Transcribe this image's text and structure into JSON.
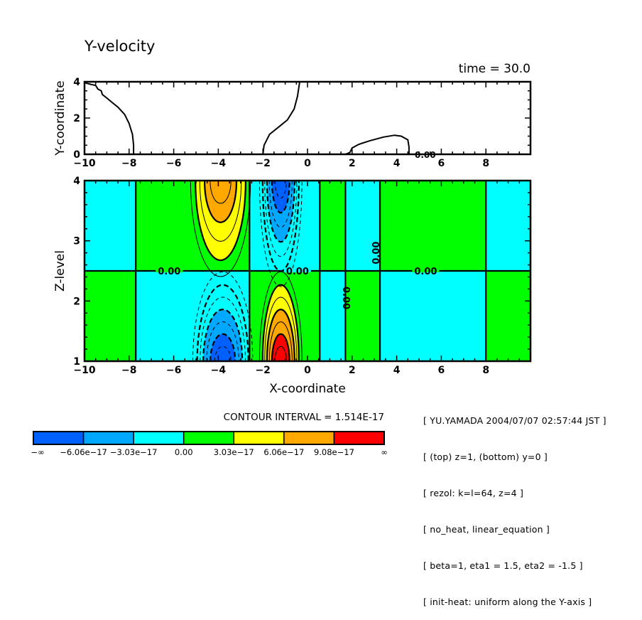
{
  "title": "Y-velocity",
  "time_label": "time = 30.0",
  "contour_interval_label": "CONTOUR INTERVAL = 1.514E-17",
  "info_lines": [
    "[ YU.YAMADA 2004/07/07 02:57:44 JST ]",
    "[ (top) z=1, (bottom) y=0 ]",
    "[ rezol: k=l=64, z=4 ]",
    "[ no_heat, linear_equation ]",
    "[ beta=1, eta1 = 1.5, eta2 = -1.5 ]",
    "[ init-heat: uniform along the Y-axis ]"
  ],
  "chart_data": [
    {
      "type": "contour",
      "panel": "top",
      "title": "Y-velocity",
      "xlabel": "",
      "ylabel": "Y-coordinate",
      "xlim": [
        -10,
        10
      ],
      "ylim": [
        0,
        4
      ],
      "xticks": [
        -10,
        -8,
        -6,
        -4,
        -2,
        0,
        2,
        4,
        6,
        8
      ],
      "yticks": [
        0,
        2,
        4
      ],
      "contour_label": "0.00",
      "zero_contours": [
        {
          "name": "zero-contour-west",
          "points": [
            [
              -10,
              3.95
            ],
            [
              -9.7,
              3.85
            ],
            [
              -9.5,
              3.8
            ],
            [
              -9.4,
              3.6
            ],
            [
              -9.25,
              3.5
            ],
            [
              -9.2,
              3.3
            ],
            [
              -9.0,
              3.1
            ],
            [
              -8.8,
              2.9
            ],
            [
              -8.5,
              2.6
            ],
            [
              -8.2,
              2.2
            ],
            [
              -8.0,
              1.7
            ],
            [
              -7.85,
              1.1
            ],
            [
              -7.8,
              0.5
            ],
            [
              -7.8,
              0
            ]
          ]
        },
        {
          "name": "zero-contour-center",
          "points": [
            [
              -2.0,
              0
            ],
            [
              -1.95,
              0.5
            ],
            [
              -1.7,
              1.1
            ],
            [
              -1.3,
              1.5
            ],
            [
              -0.9,
              1.9
            ],
            [
              -0.6,
              2.5
            ],
            [
              -0.45,
              3.2
            ],
            [
              -0.35,
              4.0
            ]
          ]
        },
        {
          "name": "zero-contour-east",
          "points": [
            [
              1.7,
              0
            ],
            [
              1.9,
              0.1
            ],
            [
              2.0,
              0.35
            ],
            [
              2.3,
              0.55
            ],
            [
              2.8,
              0.75
            ],
            [
              3.4,
              0.95
            ],
            [
              3.9,
              1.05
            ],
            [
              4.2,
              1.0
            ],
            [
              4.5,
              0.8
            ],
            [
              4.55,
              0.4
            ],
            [
              4.55,
              0
            ]
          ]
        }
      ]
    },
    {
      "type": "filled_contour",
      "panel": "bottom",
      "xlabel": "X-coordinate",
      "ylabel": "Z-level",
      "xlim": [
        -10,
        10
      ],
      "ylim": [
        1,
        4
      ],
      "xticks": [
        -10,
        -8,
        -6,
        -4,
        -2,
        0,
        2,
        4,
        6,
        8
      ],
      "yticks": [
        1,
        2,
        3,
        4
      ],
      "contour_interval": 1.514e-17,
      "zero_line_labels": [
        "0.00",
        "0.00",
        "0.00",
        "0.00",
        "0.00"
      ],
      "levels": [
        -6.06e-17,
        -3.03e-17,
        0.0,
        3.03e-17,
        6.06e-17,
        9.08e-17
      ],
      "regions": [
        {
          "name": "upper-left-cyan",
          "x": [
            -10,
            -7.7
          ],
          "z": [
            2.5,
            4
          ],
          "sign": "negative"
        },
        {
          "name": "upper-green-west",
          "x": [
            -7.7,
            -2.6
          ],
          "z": [
            2.5,
            4
          ],
          "sign": "positive"
        },
        {
          "name": "upper-cyan-center",
          "x": [
            -2.6,
            0.55
          ],
          "z": [
            2.5,
            4
          ],
          "sign": "negative"
        },
        {
          "name": "upper-green-mid",
          "x": [
            0.55,
            1.7
          ],
          "z": [
            2.5,
            4
          ],
          "sign": "positive"
        },
        {
          "name": "upper-cyan-mid",
          "x": [
            1.7,
            3.25
          ],
          "z": [
            2.5,
            4
          ],
          "sign": "negative"
        },
        {
          "name": "upper-green-east",
          "x": [
            3.25,
            8.0
          ],
          "z": [
            2.5,
            4
          ],
          "sign": "positive"
        },
        {
          "name": "upper-right-cyan",
          "x": [
            8.0,
            10
          ],
          "z": [
            2.5,
            4
          ],
          "sign": "negative"
        },
        {
          "name": "lower-left-green",
          "x": [
            -10,
            -7.7
          ],
          "z": [
            1,
            2.5
          ],
          "sign": "positive"
        },
        {
          "name": "lower-cyan-west",
          "x": [
            -7.7,
            -2.6
          ],
          "z": [
            1,
            2.5
          ],
          "sign": "negative"
        },
        {
          "name": "lower-green-center",
          "x": [
            -2.6,
            0.55
          ],
          "z": [
            1,
            2.5
          ],
          "sign": "positive"
        },
        {
          "name": "lower-cyan-mid",
          "x": [
            0.55,
            1.7
          ],
          "z": [
            1,
            2.5
          ],
          "sign": "negative"
        },
        {
          "name": "lower-green-mid",
          "x": [
            1.7,
            3.25
          ],
          "z": [
            1,
            2.5
          ],
          "sign": "positive"
        },
        {
          "name": "lower-cyan-east",
          "x": [
            3.25,
            8.0
          ],
          "z": [
            1,
            2.5
          ],
          "sign": "negative"
        },
        {
          "name": "lower-right-green",
          "x": [
            8.0,
            10
          ],
          "z": [
            1,
            2.5
          ],
          "sign": "positive"
        }
      ],
      "extrema": [
        {
          "name": "upper-positive-max",
          "x": -3.9,
          "z": 4.0,
          "peak_level": 2,
          "width": 2.4,
          "reach": 1.45
        },
        {
          "name": "upper-negative-min",
          "x": -1.2,
          "z": 4.0,
          "peak_level": -3,
          "width": 1.7,
          "reach": 1.6
        },
        {
          "name": "lower-negative-min",
          "x": -3.8,
          "z": 1.0,
          "peak_level": -3,
          "width": 2.4,
          "reach": 1.35
        },
        {
          "name": "lower-positive-max",
          "x": -1.2,
          "z": 1.0,
          "peak_level": 3,
          "width": 1.7,
          "reach": 1.35
        }
      ]
    },
    {
      "type": "colorbar",
      "colors": [
        "#0060ff",
        "#00a8ff",
        "#00ffff",
        "#00ff00",
        "#ffff00",
        "#ffa800",
        "#ff0000"
      ],
      "tick_labels": [
        "-∞",
        "-6.06e-17",
        "-3.03e-17",
        "0.00",
        "3.03e-17",
        "6.06e-17",
        "9.08e-17",
        "∞"
      ]
    }
  ]
}
